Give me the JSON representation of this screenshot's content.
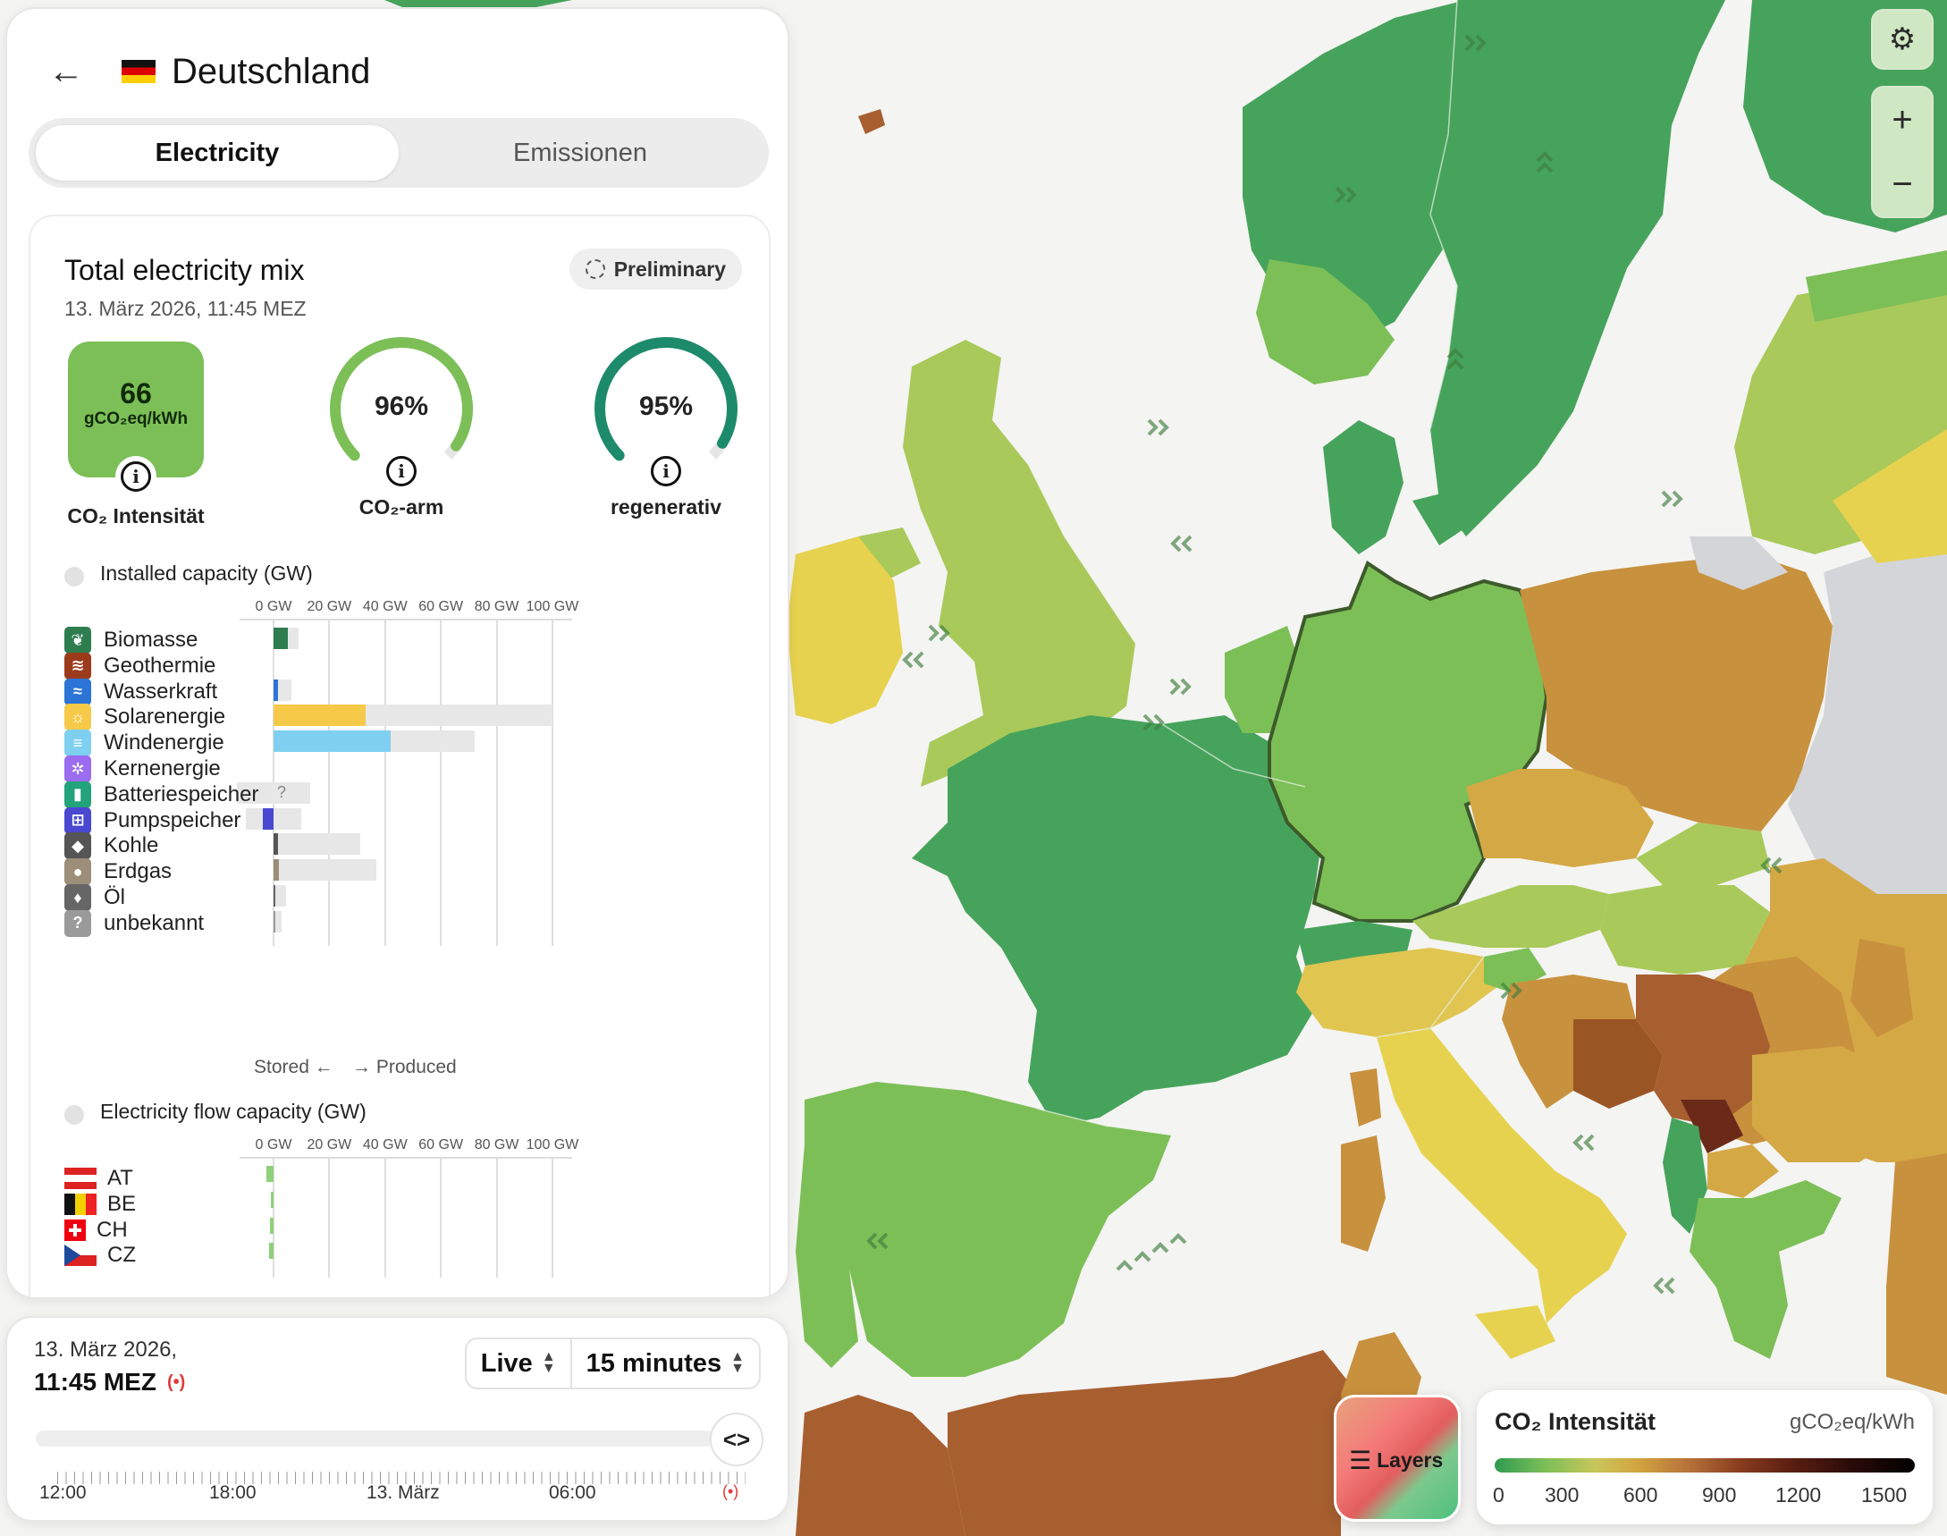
{
  "panel": {
    "back_icon": "arrow-left-icon",
    "country": "Deutschland",
    "tabs": [
      "Electricity",
      "Emissionen"
    ],
    "active_tab": "Electricity"
  },
  "mix": {
    "title": "Total electricity mix",
    "date": "13. März 2026, 11:45 MEZ",
    "badge": "Preliminary",
    "co2_value": "66",
    "co2_unit": "gCO₂eq/kWh",
    "co2_label": "CO₂ Intensität",
    "co2_color": "#7cbf57",
    "low_carbon_pct": "96%",
    "low_carbon_fraction": 0.96,
    "low_carbon_label": "CO₂-arm",
    "renewable_pct": "95%",
    "renewable_fraction": 0.95,
    "renewable_label": "regenerativ"
  },
  "capacity": {
    "title": "Installed capacity (GW)",
    "axis": [
      "0 GW",
      "20 GW",
      "40 GW",
      "60 GW",
      "80 GW",
      "100 GW"
    ],
    "sources": [
      {
        "name": "Biomasse",
        "icon": "leaf-icon",
        "color": "#2e7d4f",
        "produced": 5,
        "capacity": 9
      },
      {
        "name": "Geothermie",
        "icon": "heat-icon",
        "color": "#9b3b1c",
        "produced": 0,
        "capacity": 0.1
      },
      {
        "name": "Wasserkraft",
        "icon": "water-icon",
        "color": "#2c74d6",
        "produced": 1.5,
        "capacity": 6.5
      },
      {
        "name": "Solarenergie",
        "icon": "sun-icon",
        "color": "#f7c948",
        "produced": 33,
        "capacity": 100
      },
      {
        "name": "Windenergie",
        "icon": "wind-icon",
        "color": "#7fd0f0",
        "produced": 42,
        "capacity": 72
      },
      {
        "name": "Kernenergie",
        "icon": "atom-icon",
        "color": "#9b6cf0",
        "produced": 0,
        "capacity": 0
      },
      {
        "name": "Batteriespeicher",
        "icon": "battery-icon",
        "color": "#22a37a",
        "produced": 0,
        "capacity": 13,
        "stored_capacity": 13,
        "unknown_mark": "?"
      },
      {
        "name": "Pumpspeicher",
        "icon": "pump-icon",
        "color": "#4a48d0",
        "produced": 0,
        "capacity": 10,
        "stored": 4,
        "stored_capacity": 10
      },
      {
        "name": "Kohle",
        "icon": "coal-icon",
        "color": "#555555",
        "produced": 1.5,
        "capacity": 31
      },
      {
        "name": "Erdgas",
        "icon": "gas-icon",
        "color": "#9c8e78",
        "produced": 1.8,
        "capacity": 37
      },
      {
        "name": "Öl",
        "icon": "oil-icon",
        "color": "#666666",
        "produced": 0.3,
        "capacity": 4.5
      },
      {
        "name": "unbekannt",
        "icon": "question-icon",
        "color": "#9a9a9a",
        "produced": 0.2,
        "capacity": 3
      }
    ],
    "stored_label": "Stored ←",
    "produced_label": "→ Produced"
  },
  "flow": {
    "title": "Electricity flow capacity (GW)",
    "axis": [
      "0 GW",
      "20 GW",
      "40 GW",
      "60 GW",
      "80 GW",
      "100 GW"
    ],
    "countries": [
      {
        "code": "AT",
        "flag": "flag-at-icon",
        "value": -2.6
      },
      {
        "code": "BE",
        "flag": "flag-be-icon",
        "value": -1.0
      },
      {
        "code": "CH",
        "flag": "flag-ch-icon",
        "value": -1.2
      },
      {
        "code": "CZ",
        "flag": "flag-cz-icon",
        "value": -1.6
      }
    ]
  },
  "timebar": {
    "date": "13. März 2026,",
    "time": "11:45 MEZ",
    "live_icon": "live-broadcast-icon",
    "mode": "Live",
    "interval": "15 minutes",
    "expand_icon": "code-brackets-icon",
    "labels": [
      "12:00",
      "18:00",
      "13. März",
      "06:00"
    ],
    "live_end_icon": "live-broadcast-icon"
  },
  "map_controls": {
    "settings_icon": "gear-icon",
    "zoom_in": "+",
    "zoom_out": "−"
  },
  "legend": {
    "title": "CO₂ Intensität",
    "unit": "gCO₂eq/kWh",
    "ticks": [
      "0",
      "300",
      "600",
      "900",
      "1200",
      "1500"
    ]
  },
  "layers": {
    "label": "Layers",
    "icon": "layers-icon"
  },
  "colors": {
    "green_dark": "#46a35c",
    "green_mid": "#7cbf57",
    "yellow_green": "#a9c95a",
    "yellow": "#e7d24f",
    "ochre": "#d4a844",
    "brown": "#a75f30",
    "dark_brown": "#6b2a18",
    "no_data": "#d3d5d8"
  }
}
